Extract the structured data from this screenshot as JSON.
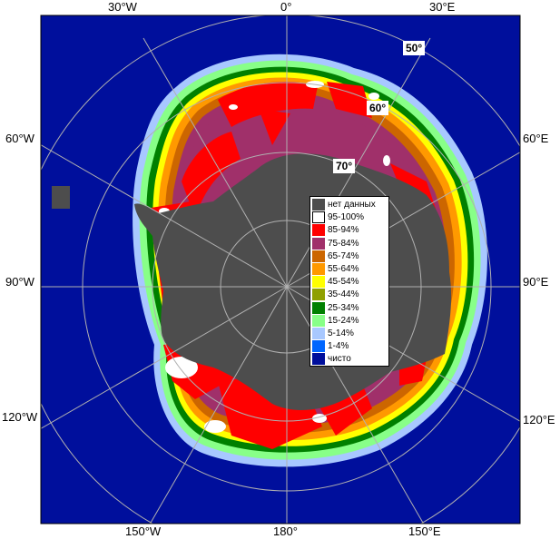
{
  "map": {
    "edge_labels": {
      "top": [
        "30°W",
        "0°",
        "30°E"
      ],
      "left": [
        "60°W",
        "90°W",
        "120°W"
      ],
      "right": [
        "60°E",
        "90°E",
        "120°E"
      ],
      "bottom": [
        "150°W",
        "180°",
        "150°E"
      ]
    },
    "lat_labels": [
      "50°",
      "60°",
      "70°"
    ],
    "colors": {
      "ocean": "#000f9c",
      "land": "#4d4d4d",
      "grid": "#b0b0b0"
    }
  },
  "legend": {
    "items": [
      {
        "label": "нет данных",
        "color": "#4d4d4d"
      },
      {
        "label": "95-100%",
        "color": "#ffffff"
      },
      {
        "label": "85-94%",
        "color": "#ff0000"
      },
      {
        "label": "75-84%",
        "color": "#a0306a"
      },
      {
        "label": "65-74%",
        "color": "#cc6600"
      },
      {
        "label": "55-64%",
        "color": "#ff9900"
      },
      {
        "label": "45-54%",
        "color": "#ffff00"
      },
      {
        "label": "35-44%",
        "color": "#8fa000"
      },
      {
        "label": "25-34%",
        "color": "#008000"
      },
      {
        "label": "15-24%",
        "color": "#88ff88"
      },
      {
        "label": "5-14%",
        "color": "#a8c8ff"
      },
      {
        "label": "1-4%",
        "color": "#0066ff"
      },
      {
        "label": "чисто",
        "color": "#000f9c"
      }
    ]
  }
}
